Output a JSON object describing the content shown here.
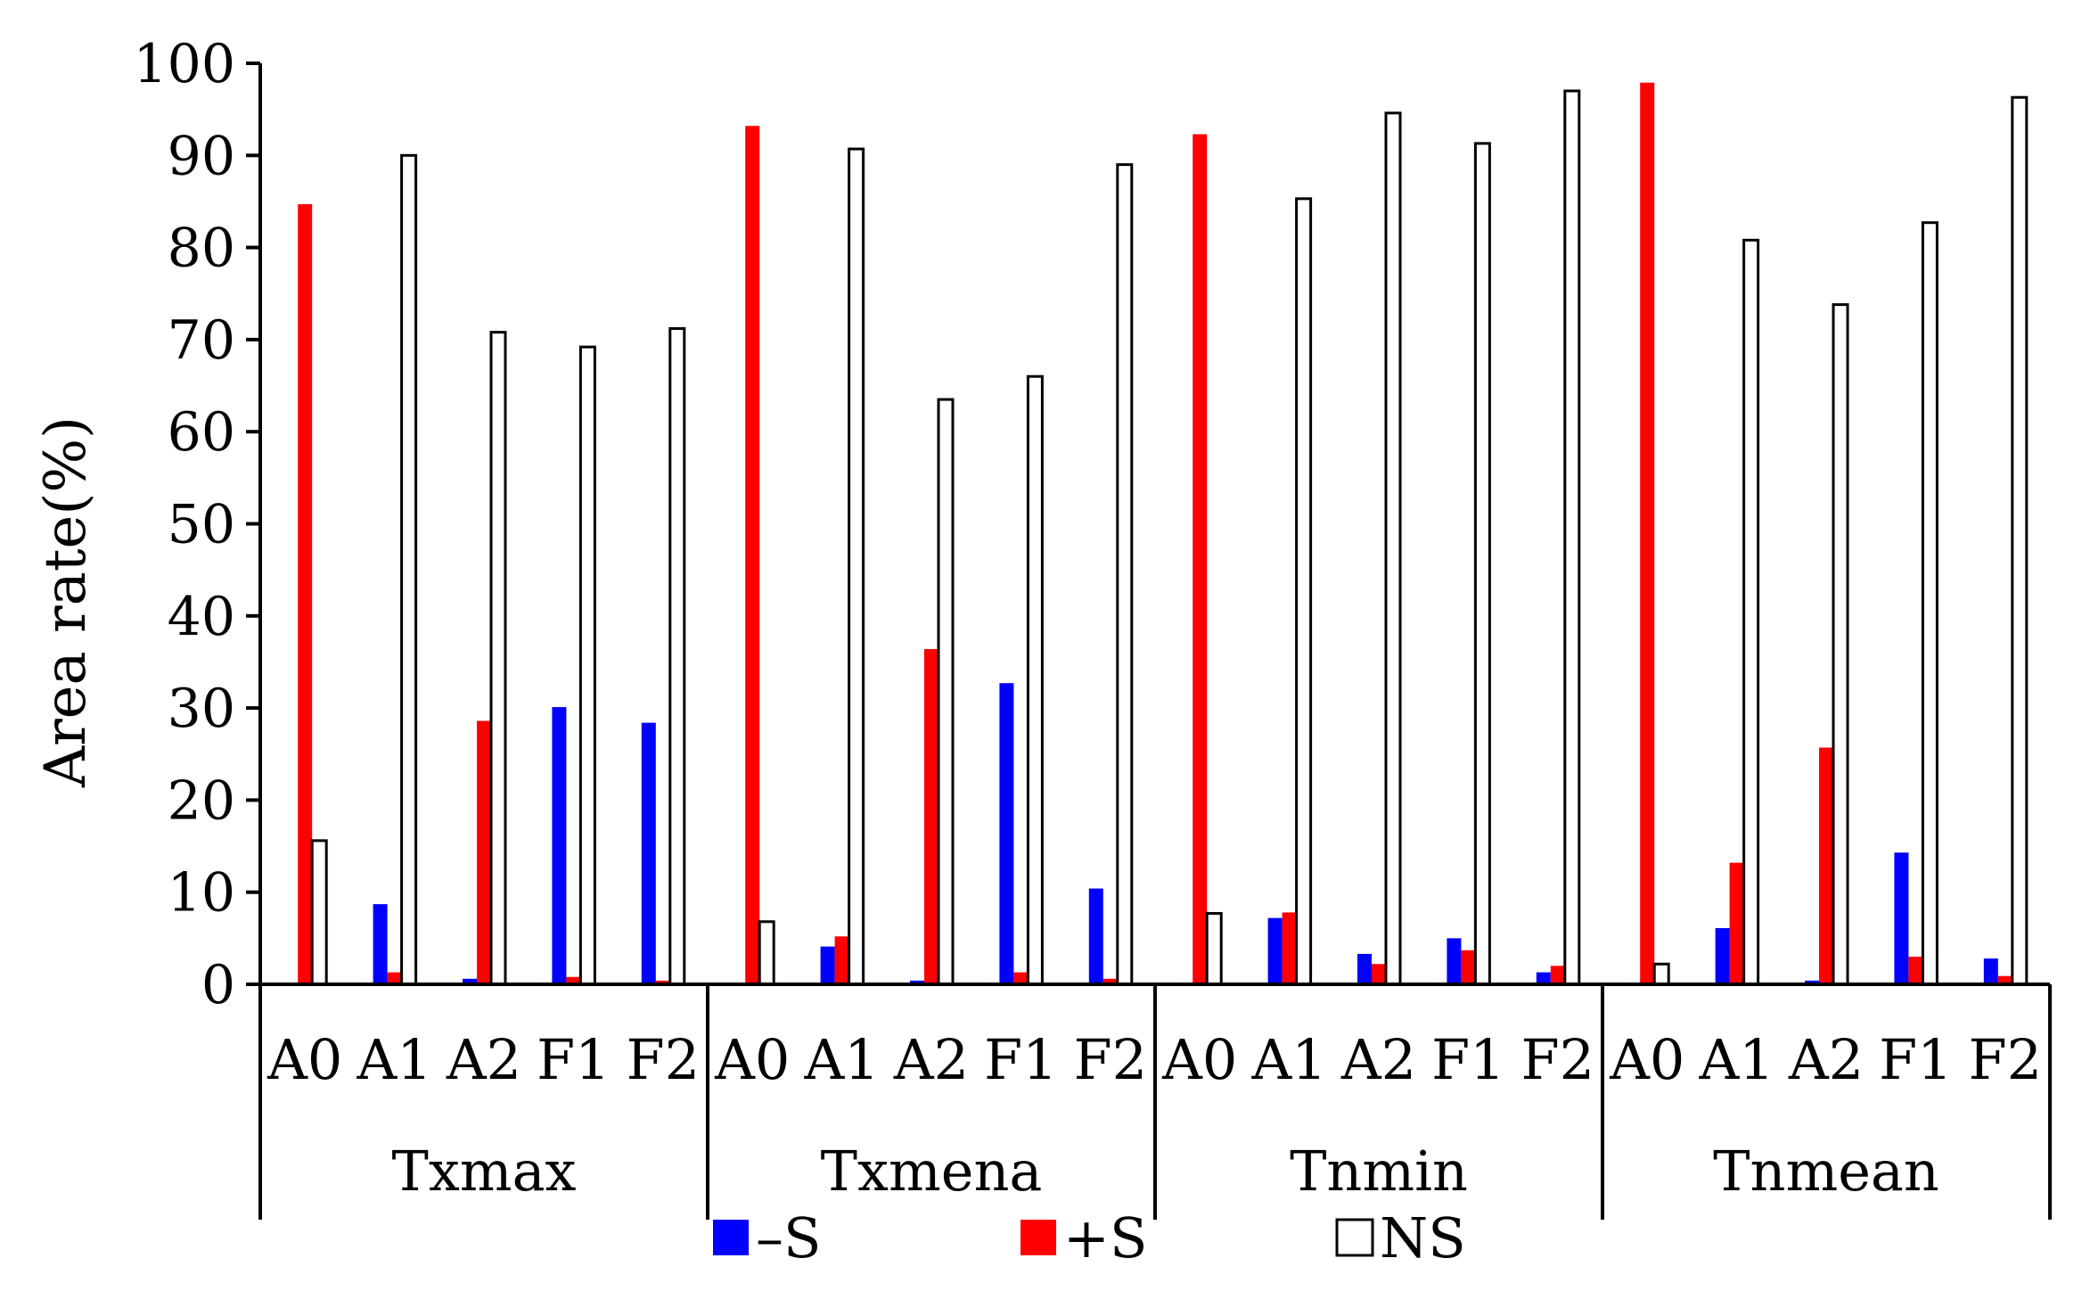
{
  "chart_data": {
    "type": "bar",
    "title": "",
    "xlabel": "",
    "ylabel": "Area rate(%)",
    "ylim": [
      0,
      100
    ],
    "yticks": [
      "0",
      "10",
      "20",
      "30",
      "40",
      "50",
      "60",
      "70",
      "80",
      "90",
      "100"
    ],
    "grid": false,
    "legend_position": "bottom",
    "colors": {
      "-S": "#0000ff",
      "+S": "#ff0000",
      "NS": "#ffffff"
    },
    "groups": [
      {
        "name": "Txmax",
        "categories": [
          "A0",
          "A1",
          "A2",
          "F1",
          "F2"
        ],
        "series": [
          {
            "name": "-S",
            "values": [
              0,
              8.7,
              0.6,
              30.1,
              28.4
            ]
          },
          {
            "name": "+S",
            "values": [
              84.7,
              1.3,
              28.6,
              0.8,
              0.4
            ]
          },
          {
            "name": "NS",
            "values": [
              15.6,
              90.0,
              70.8,
              69.2,
              71.2
            ]
          }
        ]
      },
      {
        "name": "Txmena",
        "categories": [
          "A0",
          "A1",
          "A2",
          "F1",
          "F2"
        ],
        "series": [
          {
            "name": "-S",
            "values": [
              0,
              4.1,
              0.4,
              32.7,
              10.4
            ]
          },
          {
            "name": "+S",
            "values": [
              93.2,
              5.2,
              36.4,
              1.3,
              0.6
            ]
          },
          {
            "name": "NS",
            "values": [
              6.8,
              90.7,
              63.5,
              66.0,
              89.0
            ]
          }
        ]
      },
      {
        "name": "Tnmin",
        "categories": [
          "A0",
          "A1",
          "A2",
          "F1",
          "F2"
        ],
        "series": [
          {
            "name": "-S",
            "values": [
              0,
              7.2,
              3.3,
              5.0,
              1.3
            ]
          },
          {
            "name": "+S",
            "values": [
              92.3,
              7.8,
              2.2,
              3.7,
              2.0
            ]
          },
          {
            "name": "NS",
            "values": [
              7.7,
              85.3,
              94.6,
              91.3,
              97.0
            ]
          }
        ]
      },
      {
        "name": "Tnmean",
        "categories": [
          "A0",
          "A1",
          "A2",
          "F1",
          "F2"
        ],
        "series": [
          {
            "name": "-S",
            "values": [
              0,
              6.1,
              0.4,
              14.3,
              2.8
            ]
          },
          {
            "name": "+S",
            "values": [
              97.9,
              13.2,
              25.7,
              3.0,
              0.9
            ]
          },
          {
            "name": "NS",
            "values": [
              2.2,
              80.8,
              73.8,
              82.7,
              96.3
            ]
          }
        ]
      }
    ],
    "legend": [
      {
        "name": "-S",
        "label": "–S"
      },
      {
        "name": "+S",
        "label": "+S"
      },
      {
        "name": "NS",
        "label": "NS"
      }
    ]
  }
}
